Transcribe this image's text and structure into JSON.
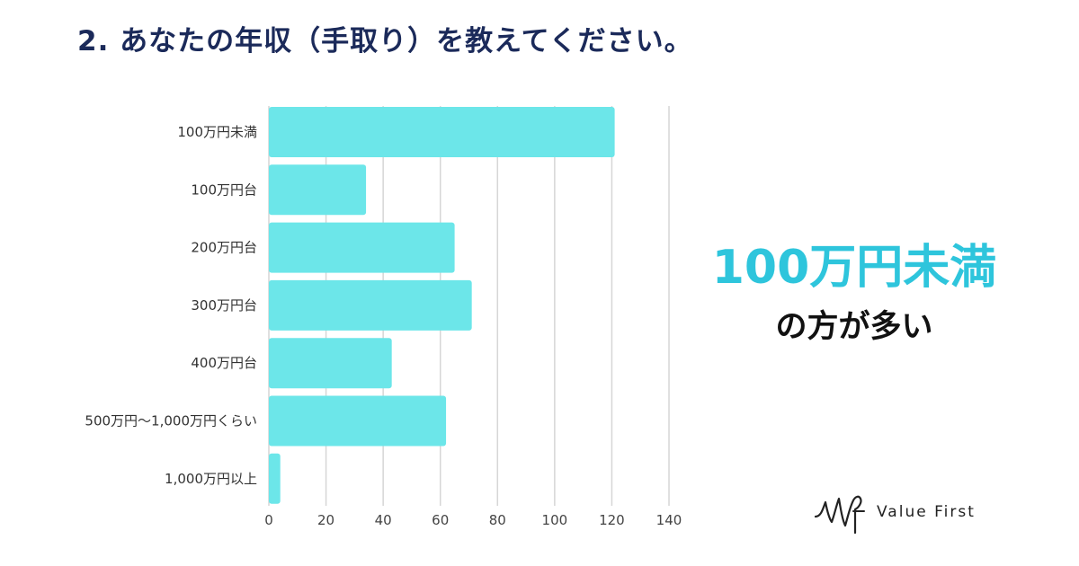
{
  "title": "2. あなたの年収（手取り）を教えてください。",
  "callout": {
    "main": "100万円未満",
    "sub": "の方が多い"
  },
  "logo": {
    "name": "Value First"
  },
  "colors": {
    "bar": "#6ce6e9",
    "accent": "#2ec5dc",
    "title": "#1b2a5a",
    "grid": "#d6d6d6"
  },
  "chart_data": {
    "type": "bar",
    "orientation": "horizontal",
    "title": "",
    "xlabel": "",
    "ylabel": "",
    "categories": [
      "100万円未満",
      "100万円台",
      "200万円台",
      "300万円台",
      "400万円台",
      "500万円〜1,000万円くらい",
      "1,000万円以上"
    ],
    "values": [
      121,
      34,
      65,
      71,
      43,
      62,
      4
    ],
    "xlim": [
      0,
      140
    ],
    "xticks": [
      0,
      20,
      40,
      60,
      80,
      100,
      120,
      140
    ],
    "grid": "vertical",
    "legend": "none"
  }
}
